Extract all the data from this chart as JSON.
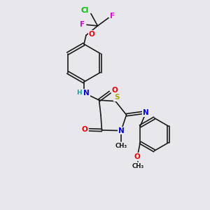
{
  "bg_color": "#e8e8ec",
  "bond_color": "#1a1a1a",
  "atom_colors": {
    "N": "#0000ee",
    "O": "#ee0000",
    "S": "#aaaa00",
    "Cl": "#00bb00",
    "F": "#dd00dd",
    "H": "#00aaaa",
    "C": "#1a1a1a"
  },
  "figsize": [
    3.0,
    3.0
  ],
  "dpi": 100
}
